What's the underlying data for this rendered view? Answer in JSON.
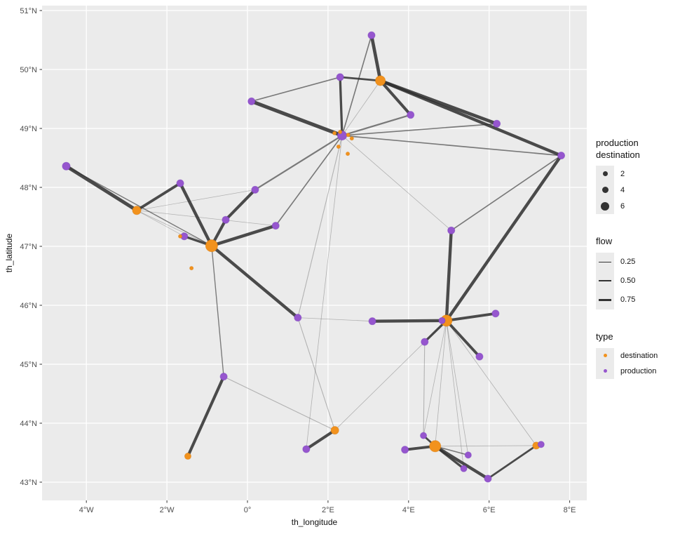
{
  "chart_data": {
    "type": "scatter",
    "subtype": "geographic flow network",
    "xlabel": "th_longitude",
    "ylabel": "th_latitude",
    "xlim": [
      -5.1,
      8.42
    ],
    "ylim": [
      42.69,
      51.08
    ],
    "grid": "white major gridlines on gray panel",
    "x_ticks": [
      {
        "label": "4°W",
        "value": -4
      },
      {
        "label": "2°W",
        "value": -2
      },
      {
        "label": "0°",
        "value": 0
      },
      {
        "label": "2°E",
        "value": 2
      },
      {
        "label": "4°E",
        "value": 4
      },
      {
        "label": "6°E",
        "value": 6
      },
      {
        "label": "8°E",
        "value": 8
      }
    ],
    "y_ticks": [
      {
        "label": "43°N",
        "value": 43
      },
      {
        "label": "44°N",
        "value": 44
      },
      {
        "label": "45°N",
        "value": 45
      },
      {
        "label": "46°N",
        "value": 46
      },
      {
        "label": "47°N",
        "value": 47
      },
      {
        "label": "48°N",
        "value": 48
      },
      {
        "label": "49°N",
        "value": 49
      },
      {
        "label": "50°N",
        "value": 50
      },
      {
        "label": "51°N",
        "value": 51
      }
    ],
    "colors": {
      "destination": "#F2921D",
      "production": "#9656CE",
      "edge": "#2F2F2F",
      "panel": "#EBEBEB",
      "gridline": "#FFFFFF",
      "tick_text": "#4D4D4D",
      "axis_title": "#111111",
      "legend_key_bg": "#EBEBEB",
      "legend_glyph": "#333333"
    },
    "nodes": [
      {
        "lon": 3.08,
        "lat": 50.58,
        "type": "production",
        "r": 5
      },
      {
        "lon": 2.3,
        "lat": 49.87,
        "type": "production",
        "r": 5
      },
      {
        "lon": 3.3,
        "lat": 49.81,
        "type": "destination",
        "r": 7
      },
      {
        "lon": 4.05,
        "lat": 49.23,
        "type": "production",
        "r": 5
      },
      {
        "lon": 0.1,
        "lat": 49.46,
        "type": "production",
        "r": 5
      },
      {
        "lon": 2.35,
        "lat": 48.88,
        "type": "production",
        "r": 6.5
      },
      {
        "lon": 6.19,
        "lat": 49.08,
        "type": "production",
        "r": 5
      },
      {
        "lon": 7.79,
        "lat": 48.54,
        "type": "production",
        "r": 5
      },
      {
        "lon": -4.5,
        "lat": 48.36,
        "type": "production",
        "r": 5.5
      },
      {
        "lon": -1.67,
        "lat": 48.07,
        "type": "production",
        "r": 5
      },
      {
        "lon": 0.19,
        "lat": 47.96,
        "type": "production",
        "r": 5
      },
      {
        "lon": -2.75,
        "lat": 47.61,
        "type": "destination",
        "r": 6
      },
      {
        "lon": -0.54,
        "lat": 47.45,
        "type": "production",
        "r": 5
      },
      {
        "lon": 0.7,
        "lat": 47.35,
        "type": "production",
        "r": 5
      },
      {
        "lon": -1.57,
        "lat": 47.17,
        "type": "production",
        "r": 5
      },
      {
        "lon": -0.89,
        "lat": 47.01,
        "type": "destination",
        "r": 8.5
      },
      {
        "lon": 5.06,
        "lat": 47.27,
        "type": "production",
        "r": 5
      },
      {
        "lon": 1.25,
        "lat": 45.79,
        "type": "production",
        "r": 5
      },
      {
        "lon": 3.1,
        "lat": 45.73,
        "type": "production",
        "r": 5
      },
      {
        "lon": 4.94,
        "lat": 45.74,
        "type": "destination",
        "r": 8
      },
      {
        "lon": 4.83,
        "lat": 45.74,
        "type": "production",
        "r": 4.5
      },
      {
        "lon": 6.16,
        "lat": 45.86,
        "type": "production",
        "r": 5
      },
      {
        "lon": 5.76,
        "lat": 45.13,
        "type": "production",
        "r": 5
      },
      {
        "lon": 4.4,
        "lat": 45.38,
        "type": "production",
        "r": 5
      },
      {
        "lon": -0.59,
        "lat": 44.79,
        "type": "production",
        "r": 5
      },
      {
        "lon": -1.48,
        "lat": 43.44,
        "type": "destination",
        "r": 4.5
      },
      {
        "lon": 1.46,
        "lat": 43.56,
        "type": "production",
        "r": 5
      },
      {
        "lon": 2.17,
        "lat": 43.88,
        "type": "destination",
        "r": 5.5
      },
      {
        "lon": 3.91,
        "lat": 43.55,
        "type": "production",
        "r": 5
      },
      {
        "lon": 4.37,
        "lat": 43.79,
        "type": "production",
        "r": 4.5
      },
      {
        "lon": 4.66,
        "lat": 43.61,
        "type": "destination",
        "r": 8
      },
      {
        "lon": 5.48,
        "lat": 43.46,
        "type": "production",
        "r": 4.5
      },
      {
        "lon": 5.37,
        "lat": 43.23,
        "type": "production",
        "r": 4.5
      },
      {
        "lon": 5.97,
        "lat": 43.06,
        "type": "production",
        "r": 5
      },
      {
        "lon": 7.17,
        "lat": 43.62,
        "type": "destination",
        "r": 5
      },
      {
        "lon": 7.29,
        "lat": 43.64,
        "type": "production",
        "r": 4.5
      },
      {
        "lon": 2.16,
        "lat": 48.92,
        "type": "destination",
        "r": 2.5
      },
      {
        "lon": 2.3,
        "lat": 48.94,
        "type": "destination",
        "r": 2.5
      },
      {
        "lon": 2.5,
        "lat": 48.89,
        "type": "destination",
        "r": 2.5
      },
      {
        "lon": 2.59,
        "lat": 48.83,
        "type": "destination",
        "r": 2.5
      },
      {
        "lon": 2.26,
        "lat": 48.69,
        "type": "destination",
        "r": 2.5
      },
      {
        "lon": 2.49,
        "lat": 48.57,
        "type": "destination",
        "r": 2.5
      },
      {
        "lon": -1.67,
        "lat": 47.17,
        "type": "destination",
        "r": 2.5
      },
      {
        "lon": -1.39,
        "lat": 46.63,
        "type": "destination",
        "r": 2.5
      }
    ],
    "edges": [
      {
        "a": 0,
        "b": 2,
        "flow": 0.85
      },
      {
        "a": 1,
        "b": 2,
        "flow": 0.5
      },
      {
        "a": 2,
        "b": 3,
        "flow": 0.75
      },
      {
        "a": 2,
        "b": 6,
        "flow": 0.85
      },
      {
        "a": 2,
        "b": 7,
        "flow": 0.8
      },
      {
        "a": 7,
        "b": 19,
        "flow": 0.8
      },
      {
        "a": 1,
        "b": 5,
        "flow": 0.6
      },
      {
        "a": 4,
        "b": 5,
        "flow": 0.95
      },
      {
        "a": 5,
        "b": 10,
        "flow": 0.4
      },
      {
        "a": 10,
        "b": 12,
        "flow": 0.75
      },
      {
        "a": 12,
        "b": 15,
        "flow": 0.75
      },
      {
        "a": 9,
        "b": 15,
        "flow": 0.8
      },
      {
        "a": 11,
        "b": 9,
        "flow": 0.7
      },
      {
        "a": 8,
        "b": 11,
        "flow": 0.9
      },
      {
        "a": 8,
        "b": 15,
        "flow": 0.25
      },
      {
        "a": 11,
        "b": 15,
        "flow": 0.15
      },
      {
        "a": 11,
        "b": 10,
        "flow": 0.12
      },
      {
        "a": 11,
        "b": 13,
        "flow": 0.12
      },
      {
        "a": 11,
        "b": 14,
        "flow": 0.12
      },
      {
        "a": 15,
        "b": 14,
        "flow": 0.6
      },
      {
        "a": 15,
        "b": 13,
        "flow": 0.8
      },
      {
        "a": 15,
        "b": 17,
        "flow": 0.8
      },
      {
        "a": 15,
        "b": 24,
        "flow": 0.25
      },
      {
        "a": 24,
        "b": 25,
        "flow": 0.75
      },
      {
        "a": 24,
        "b": 27,
        "flow": 0.2
      },
      {
        "a": 26,
        "b": 27,
        "flow": 0.75
      },
      {
        "a": 18,
        "b": 19,
        "flow": 0.8
      },
      {
        "a": 16,
        "b": 19,
        "flow": 0.8
      },
      {
        "a": 19,
        "b": 21,
        "flow": 0.7
      },
      {
        "a": 19,
        "b": 22,
        "flow": 0.7
      },
      {
        "a": 19,
        "b": 23,
        "flow": 0.6
      },
      {
        "a": 28,
        "b": 30,
        "flow": 0.7
      },
      {
        "a": 29,
        "b": 30,
        "flow": 0.5
      },
      {
        "a": 30,
        "b": 33,
        "flow": 0.8
      },
      {
        "a": 30,
        "b": 32,
        "flow": 0.6
      },
      {
        "a": 30,
        "b": 31,
        "flow": 0.3
      },
      {
        "a": 33,
        "b": 34,
        "flow": 0.5
      },
      {
        "a": 5,
        "b": 13,
        "flow": 0.3
      },
      {
        "a": 5,
        "b": 6,
        "flow": 0.3
      },
      {
        "a": 5,
        "b": 7,
        "flow": 0.3
      },
      {
        "a": 5,
        "b": 3,
        "flow": 0.4
      },
      {
        "a": 5,
        "b": 0,
        "flow": 0.3
      },
      {
        "a": 2,
        "b": 5,
        "flow": 0.15
      },
      {
        "a": 4,
        "b": 1,
        "flow": 0.3
      },
      {
        "a": 16,
        "b": 7,
        "flow": 0.3
      },
      {
        "a": 5,
        "b": 16,
        "flow": 0.15
      },
      {
        "a": 5,
        "b": 17,
        "flow": 0.2
      },
      {
        "a": 5,
        "b": 26,
        "flow": 0.15
      },
      {
        "a": 19,
        "b": 30,
        "flow": 0.15
      },
      {
        "a": 19,
        "b": 29,
        "flow": 0.15
      },
      {
        "a": 19,
        "b": 31,
        "flow": 0.15
      },
      {
        "a": 19,
        "b": 32,
        "flow": 0.15
      },
      {
        "a": 19,
        "b": 34,
        "flow": 0.15
      },
      {
        "a": 23,
        "b": 29,
        "flow": 0.2
      },
      {
        "a": 30,
        "b": 34,
        "flow": 0.15
      },
      {
        "a": 17,
        "b": 18,
        "flow": 0.15
      },
      {
        "a": 17,
        "b": 27,
        "flow": 0.2
      },
      {
        "a": 19,
        "b": 27,
        "flow": 0.15
      }
    ],
    "legend": {
      "size": {
        "title_line1": "production",
        "title_line2": "destination",
        "entries": [
          {
            "label": "2"
          },
          {
            "label": "4"
          },
          {
            "label": "6"
          }
        ]
      },
      "flow": {
        "title": "flow",
        "entries": [
          {
            "label": "0.25"
          },
          {
            "label": "0.50"
          },
          {
            "label": "0.75"
          }
        ]
      },
      "type": {
        "title": "type",
        "entries": [
          {
            "label": "destination"
          },
          {
            "label": "production"
          }
        ]
      }
    }
  }
}
